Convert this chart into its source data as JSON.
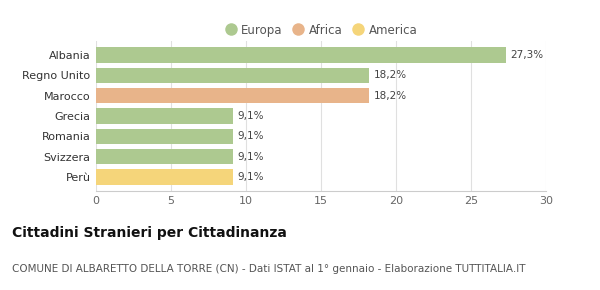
{
  "categories": [
    "Perù",
    "Svizzera",
    "Romania",
    "Grecia",
    "Marocco",
    "Regno Unito",
    "Albania"
  ],
  "values": [
    9.1,
    9.1,
    9.1,
    9.1,
    18.2,
    18.2,
    27.3
  ],
  "labels": [
    "9,1%",
    "9,1%",
    "9,1%",
    "9,1%",
    "18,2%",
    "18,2%",
    "27,3%"
  ],
  "colors": [
    "#f5d57a",
    "#adc990",
    "#adc990",
    "#adc990",
    "#e8b48a",
    "#adc990",
    "#adc990"
  ],
  "legend": [
    {
      "label": "Europa",
      "color": "#adc990"
    },
    {
      "label": "Africa",
      "color": "#e8b48a"
    },
    {
      "label": "America",
      "color": "#f5d57a"
    }
  ],
  "xlim": [
    0,
    30
  ],
  "xticks": [
    0,
    5,
    10,
    15,
    20,
    25,
    30
  ],
  "title": "Cittadini Stranieri per Cittadinanza",
  "subtitle": "COMUNE DI ALBARETTO DELLA TORRE (CN) - Dati ISTAT al 1° gennaio - Elaborazione TUTTITALIA.IT",
  "background_color": "#ffffff",
  "bar_height": 0.75,
  "title_fontsize": 10,
  "subtitle_fontsize": 7.5,
  "label_fontsize": 7.5,
  "tick_fontsize": 8,
  "legend_fontsize": 8.5
}
